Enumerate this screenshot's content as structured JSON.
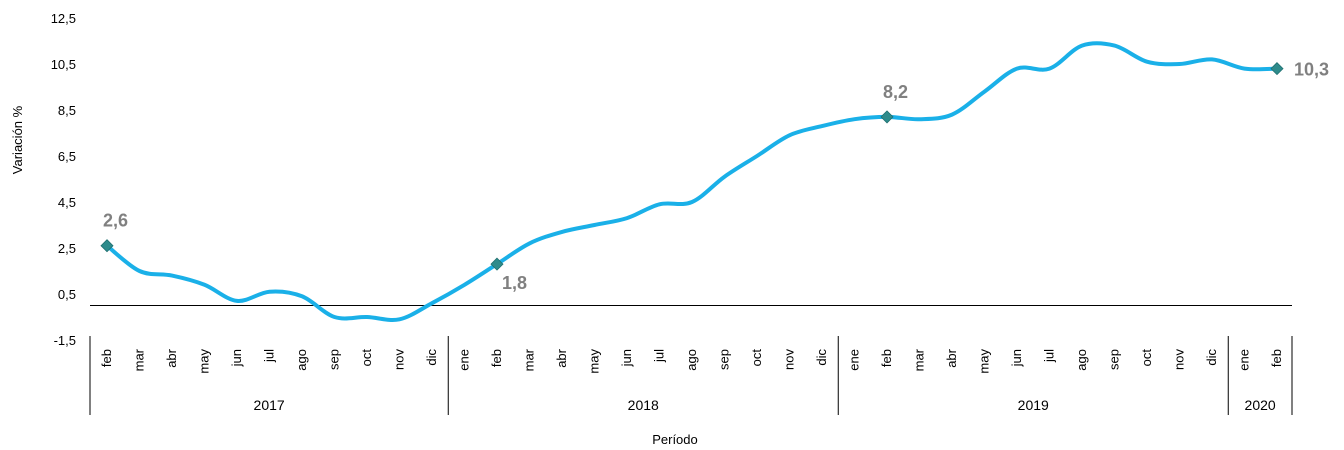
{
  "chart_data": {
    "type": "line",
    "xlabel": "Período",
    "ylabel": "Variación %",
    "ylim": [
      -1.5,
      12.5
    ],
    "yticks": [
      "12,5",
      "10,5",
      "8,5",
      "6,5",
      "4,5",
      "2,5",
      "0,5",
      "-1,5"
    ],
    "ytick_values": [
      12.5,
      10.5,
      8.5,
      6.5,
      4.5,
      2.5,
      0.5,
      -1.5
    ],
    "categories": [
      "feb",
      "mar",
      "abr",
      "may",
      "jun",
      "jul",
      "ago",
      "sep",
      "oct",
      "nov",
      "dic",
      "ene",
      "feb",
      "mar",
      "abr",
      "may",
      "jun",
      "jul",
      "ago",
      "sep",
      "oct",
      "nov",
      "dic",
      "ene",
      "feb",
      "mar",
      "abr",
      "may",
      "jun",
      "jul",
      "ago",
      "sep",
      "oct",
      "nov",
      "dic",
      "ene",
      "feb"
    ],
    "year_groups": [
      {
        "label": "2017",
        "start": 0,
        "end": 10
      },
      {
        "label": "2018",
        "start": 11,
        "end": 22
      },
      {
        "label": "2019",
        "start": 23,
        "end": 34
      },
      {
        "label": "2020",
        "start": 35,
        "end": 36
      }
    ],
    "series": [
      {
        "values": [
          2.6,
          1.5,
          1.3,
          0.9,
          0.2,
          0.6,
          0.4,
          -0.5,
          -0.5,
          -0.6,
          0.1,
          0.9,
          1.8,
          2.7,
          3.2,
          3.5,
          3.8,
          4.4,
          4.5,
          5.6,
          6.5,
          7.4,
          7.8,
          8.1,
          8.2,
          8.1,
          8.3,
          9.3,
          10.3,
          10.3,
          11.3,
          11.3,
          10.6,
          10.5,
          10.7,
          10.3,
          10.3
        ],
        "color": "#1AB0E8"
      }
    ],
    "markers": [
      {
        "index": 0,
        "label": "2,6",
        "label_pos": "above"
      },
      {
        "index": 12,
        "label": "1,8",
        "label_pos": "below-right"
      },
      {
        "index": 24,
        "label": "8,2",
        "label_pos": "above"
      },
      {
        "index": 36,
        "label": "10,3",
        "label_pos": "right"
      }
    ],
    "marker_color": "#2E8B8B",
    "baseline": 0
  }
}
